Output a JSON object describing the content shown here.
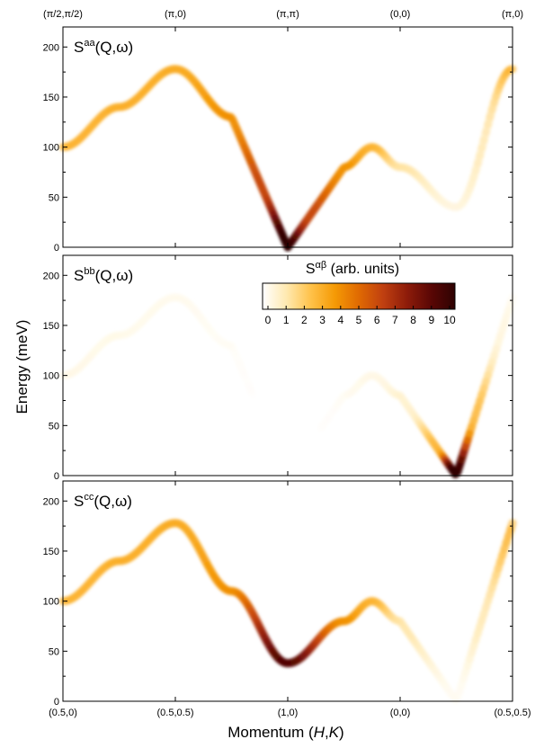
{
  "chart_data": {
    "type": "heatmap",
    "description_axes": {
      "ylabel": "Energy (meV)",
      "xlabel_prefix": "Momentum (",
      "xlabel_H": "H",
      "xlabel_sep": ",",
      "xlabel_K": "K",
      "xlabel_suffix": ")",
      "ylim": [
        0,
        220
      ],
      "yticks": [
        0,
        50,
        100,
        150,
        200
      ],
      "x_positions": [
        0,
        1,
        2,
        3,
        4
      ],
      "bottom_tick_labels": [
        "(0.5,0)",
        "(0.5,0.5)",
        "(1,0)",
        "(0,0)",
        "(0.5,0.5)"
      ],
      "top_tick_labels": [
        "(π/2,π/2)",
        "(π,0)",
        "(π,π)",
        "(0,0)",
        "(π,0)"
      ]
    },
    "panels": [
      {
        "label_base": "S",
        "label_sup": "aa",
        "label_args": "(Q,ω)",
        "dispersion": [
          [
            0,
            100
          ],
          [
            0.5,
            140
          ],
          [
            1,
            178
          ],
          [
            1.5,
            130
          ],
          [
            2,
            0
          ],
          [
            2.5,
            80
          ],
          [
            2.75,
            100
          ],
          [
            3,
            80
          ],
          [
            3.5,
            40
          ],
          [
            4,
            178
          ]
        ],
        "intensity": [
          [
            0,
            3
          ],
          [
            1,
            3.2
          ],
          [
            1.5,
            4
          ],
          [
            1.8,
            6
          ],
          [
            2,
            10
          ],
          [
            2.2,
            6
          ],
          [
            2.5,
            4
          ],
          [
            2.75,
            3
          ],
          [
            3,
            1.5
          ],
          [
            3.5,
            0.6
          ],
          [
            3.75,
            1.5
          ],
          [
            4,
            3
          ]
        ]
      },
      {
        "label_base": "S",
        "label_sup": "bb",
        "label_args": "(Q,ω)",
        "dispersion": [
          [
            0,
            100
          ],
          [
            0.5,
            140
          ],
          [
            1,
            178
          ],
          [
            1.5,
            130
          ],
          [
            2,
            0
          ],
          [
            2.5,
            80
          ],
          [
            2.75,
            100
          ],
          [
            3,
            80
          ],
          [
            3.5,
            0
          ],
          [
            4,
            178
          ]
        ],
        "intensity": [
          [
            0,
            0.5
          ],
          [
            1,
            0.4
          ],
          [
            1.5,
            0.2
          ],
          [
            1.8,
            0.05
          ],
          [
            2,
            0
          ],
          [
            2.3,
            0.1
          ],
          [
            2.75,
            0.5
          ],
          [
            3.1,
            1
          ],
          [
            3.35,
            3
          ],
          [
            3.5,
            10
          ],
          [
            3.65,
            3
          ],
          [
            3.9,
            0.8
          ],
          [
            4,
            0.5
          ]
        ]
      },
      {
        "label_base": "S",
        "label_sup": "cc",
        "label_args": "(Q,ω)",
        "dispersion": [
          [
            0,
            100
          ],
          [
            0.5,
            140
          ],
          [
            1,
            178
          ],
          [
            1.5,
            110
          ],
          [
            2,
            38
          ],
          [
            2.5,
            80
          ],
          [
            2.75,
            100
          ],
          [
            3,
            80
          ],
          [
            3.5,
            0
          ],
          [
            4,
            178
          ]
        ],
        "intensity": [
          [
            0,
            3
          ],
          [
            1,
            3.2
          ],
          [
            1.5,
            4
          ],
          [
            2,
            9
          ],
          [
            2.5,
            4
          ],
          [
            2.75,
            3
          ],
          [
            3,
            1.5
          ],
          [
            3.5,
            0.3
          ],
          [
            3.75,
            1.5
          ],
          [
            4,
            3
          ]
        ]
      }
    ],
    "colorbar": {
      "title_base": "S",
      "title_sup": "αβ",
      "title_rest": " (arb. units)",
      "min": 0,
      "max": 10,
      "ticks": [
        0,
        1,
        2,
        3,
        4,
        5,
        6,
        7,
        8,
        9,
        10
      ],
      "colormap": [
        "#ffffff",
        "#ffe9b0",
        "#ffc24a",
        "#f59a05",
        "#e06a02",
        "#c04010",
        "#8e1c0a",
        "#5a0705",
        "#2e0202"
      ]
    }
  }
}
